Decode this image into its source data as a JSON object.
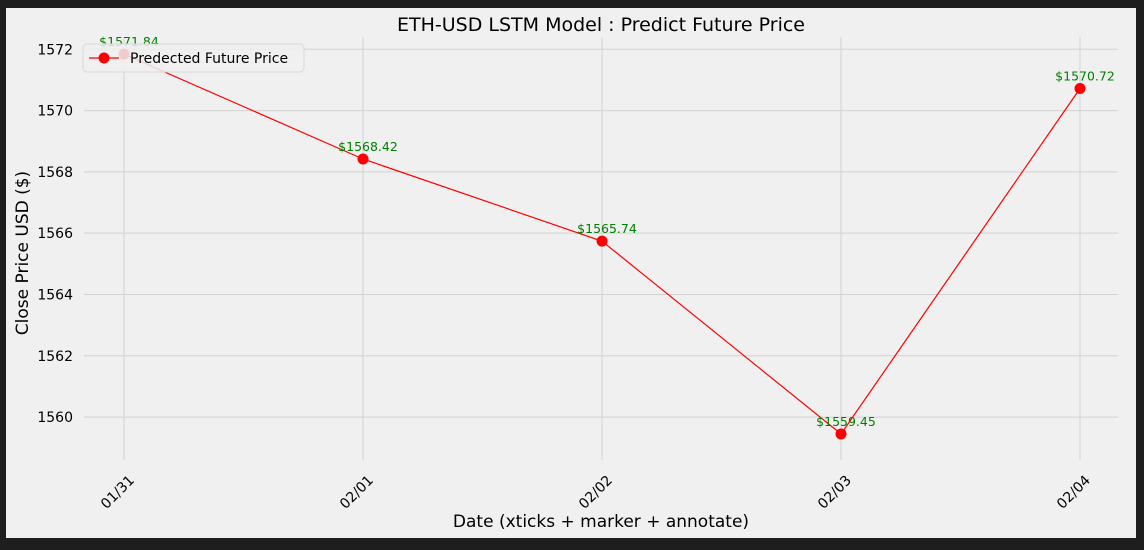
{
  "chart_data": {
    "type": "line",
    "title": "ETH-USD LSTM Model : Predict Future Price",
    "xlabel": "Date (xticks + marker + annotate)",
    "ylabel": "Close Price USD ($)",
    "categories": [
      "01/31",
      "02/01",
      "02/02",
      "02/03",
      "02/04"
    ],
    "series": [
      {
        "name": "Predected Future Price",
        "values": [
          1571.84,
          1568.42,
          1565.74,
          1559.45,
          1570.72
        ],
        "color": "#ff0000"
      }
    ],
    "data_labels": [
      "$1571.84",
      "$1568.42",
      "$1565.74",
      "$1559.45",
      "$1570.72"
    ],
    "ylim": [
      1558.6,
      1572.4
    ],
    "yticks": [
      1560,
      1562,
      1564,
      1566,
      1568,
      1570,
      1572
    ],
    "annotation_color": "#008000",
    "background": "#f0f0f0",
    "outer_background": "#1e1e1e",
    "grid": true,
    "legend_position": "upper-left"
  }
}
